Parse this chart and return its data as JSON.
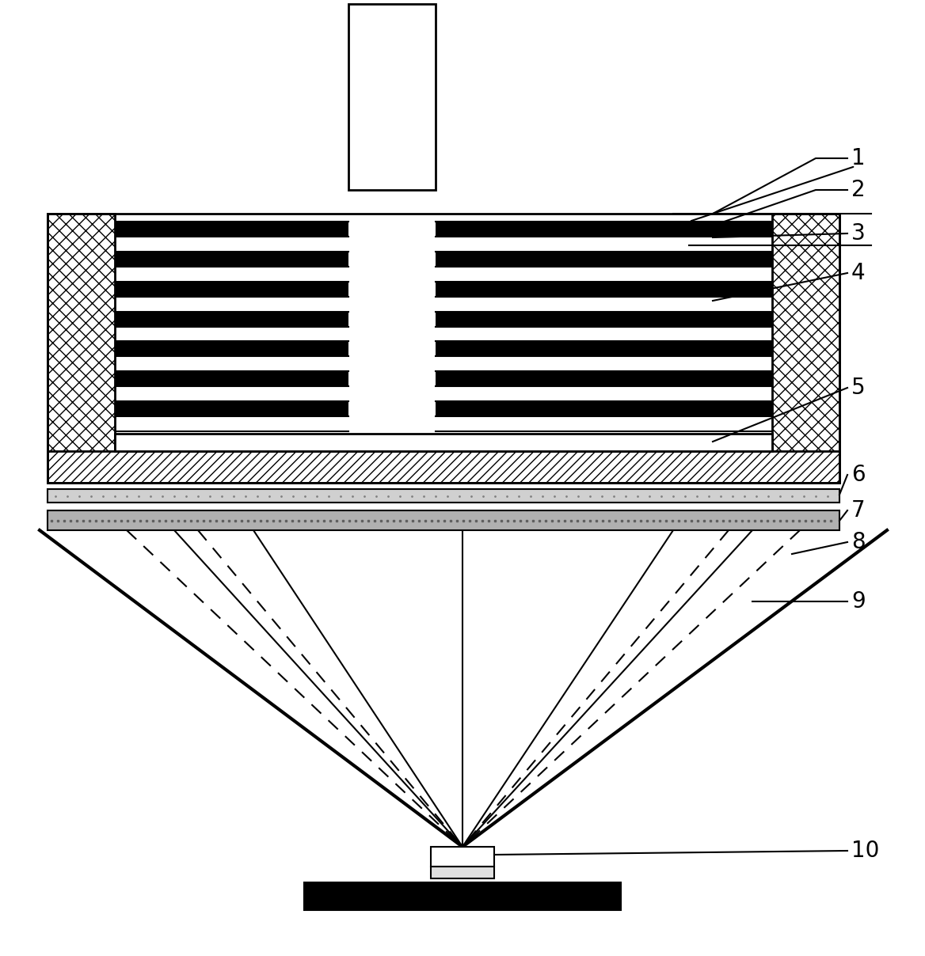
{
  "bg_color": "#ffffff",
  "line_color": "#000000",
  "label_color": "#000000",
  "labels": [
    "1",
    "2",
    "3",
    "4",
    "5",
    "6",
    "7",
    "8",
    "9",
    "10"
  ],
  "hatch_crosshatch": "xx",
  "hatch_horizontal": "===",
  "hatch_diagonal": "///",
  "hatch_dot": "...",
  "figsize": [
    11.68,
    12.08
  ],
  "dpi": 100
}
